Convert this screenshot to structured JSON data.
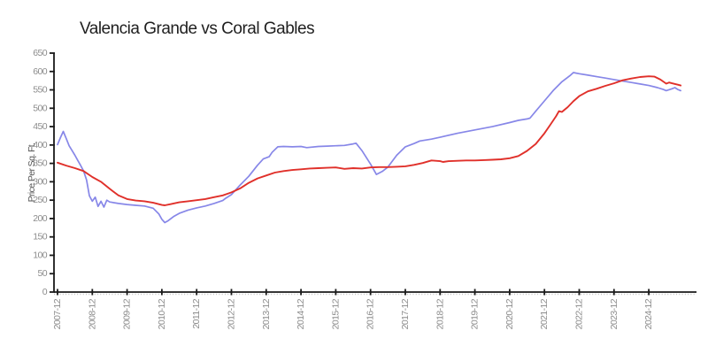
{
  "chart_data": {
    "type": "line",
    "title": "Valencia Grande vs Coral Gables",
    "xlabel": "",
    "ylabel": "Price Per Sq. Ft.",
    "ylim": [
      0,
      650
    ],
    "ytick_step": 50,
    "ytick_labels": [
      "0",
      "50",
      "100",
      "150",
      "200",
      "250",
      "300",
      "350",
      "400",
      "450",
      "500",
      "550",
      "600",
      "650"
    ],
    "xtick_labels": [
      "2007-12",
      "2008-12",
      "2009-12",
      "2010-12",
      "2011-12",
      "2012-12",
      "2013-12",
      "2014-12",
      "2015-12",
      "2016-12",
      "2017-12",
      "2018-12",
      "2019-12",
      "2020-12",
      "2021-12",
      "2022-12",
      "2023-12",
      "2024-12"
    ],
    "grid": false,
    "legend_position": "none",
    "colors": {
      "axis": "#1a1a1a",
      "tick_label": "#8c8c8c",
      "minor_tick": "#c4c4c4",
      "title": "#1f1f1f",
      "ylabel": "#555555"
    },
    "series": [
      {
        "name": "Valencia Grande",
        "color": "#8787e8",
        "stroke_width": 1.7,
        "points": [
          [
            "2007-12",
            401
          ],
          [
            "2008-01",
            420
          ],
          [
            "2008-02",
            437
          ],
          [
            "2008-03",
            418
          ],
          [
            "2008-04",
            398
          ],
          [
            "2008-05",
            385
          ],
          [
            "2008-06",
            372
          ],
          [
            "2008-07",
            358
          ],
          [
            "2008-08",
            344
          ],
          [
            "2008-09",
            329
          ],
          [
            "2008-10",
            305
          ],
          [
            "2008-11",
            262
          ],
          [
            "2008-12",
            247
          ],
          [
            "2009-01",
            258
          ],
          [
            "2009-02",
            233
          ],
          [
            "2009-03",
            247
          ],
          [
            "2009-04",
            231
          ],
          [
            "2009-05",
            250
          ],
          [
            "2009-06",
            245
          ],
          [
            "2009-09",
            241
          ],
          [
            "2009-12",
            238
          ],
          [
            "2010-03",
            236
          ],
          [
            "2010-06",
            234
          ],
          [
            "2010-09",
            228
          ],
          [
            "2010-11",
            212
          ],
          [
            "2010-12",
            198
          ],
          [
            "2011-01",
            189
          ],
          [
            "2011-02",
            193
          ],
          [
            "2011-04",
            205
          ],
          [
            "2011-06",
            214
          ],
          [
            "2011-09",
            223
          ],
          [
            "2011-12",
            229
          ],
          [
            "2012-03",
            234
          ],
          [
            "2012-06",
            241
          ],
          [
            "2012-09",
            249
          ],
          [
            "2012-10",
            255
          ],
          [
            "2012-12",
            265
          ],
          [
            "2013-03",
            291
          ],
          [
            "2013-06",
            315
          ],
          [
            "2013-09",
            345
          ],
          [
            "2013-11",
            362
          ],
          [
            "2014-01",
            368
          ],
          [
            "2014-02",
            380
          ],
          [
            "2014-04",
            395
          ],
          [
            "2014-06",
            396
          ],
          [
            "2014-09",
            395
          ],
          [
            "2014-12",
            396
          ],
          [
            "2015-02",
            393
          ],
          [
            "2015-06",
            396
          ],
          [
            "2015-09",
            397
          ],
          [
            "2015-12",
            398
          ],
          [
            "2016-03",
            399
          ],
          [
            "2016-06",
            403
          ],
          [
            "2016-07",
            405
          ],
          [
            "2016-09",
            385
          ],
          [
            "2016-12",
            348
          ],
          [
            "2017-02",
            320
          ],
          [
            "2017-04",
            328
          ],
          [
            "2017-06",
            340
          ],
          [
            "2017-09",
            372
          ],
          [
            "2017-12",
            395
          ],
          [
            "2018-03",
            404
          ],
          [
            "2018-05",
            411
          ],
          [
            "2018-09",
            416
          ],
          [
            "2018-12",
            421
          ],
          [
            "2019-06",
            432
          ],
          [
            "2019-12",
            441
          ],
          [
            "2020-06",
            450
          ],
          [
            "2020-12",
            461
          ],
          [
            "2021-03",
            467
          ],
          [
            "2021-06",
            471
          ],
          [
            "2021-07",
            473
          ],
          [
            "2021-09",
            492
          ],
          [
            "2021-12",
            520
          ],
          [
            "2022-03",
            548
          ],
          [
            "2022-06",
            572
          ],
          [
            "2022-09",
            590
          ],
          [
            "2022-10",
            597
          ],
          [
            "2022-12",
            594
          ],
          [
            "2023-03",
            590
          ],
          [
            "2023-06",
            586
          ],
          [
            "2023-09",
            582
          ],
          [
            "2023-12",
            578
          ],
          [
            "2024-03",
            574
          ],
          [
            "2024-06",
            570
          ],
          [
            "2024-09",
            566
          ],
          [
            "2024-12",
            562
          ],
          [
            "2025-03",
            556
          ],
          [
            "2025-05",
            551
          ],
          [
            "2025-06",
            548
          ],
          [
            "2025-08",
            553
          ],
          [
            "2025-09",
            556
          ],
          [
            "2025-10",
            551
          ],
          [
            "2025-11",
            548
          ]
        ]
      },
      {
        "name": "Coral Gables",
        "color": "#e0302a",
        "stroke_width": 1.9,
        "points": [
          [
            "2007-12",
            352
          ],
          [
            "2008-03",
            344
          ],
          [
            "2008-06",
            337
          ],
          [
            "2008-09",
            329
          ],
          [
            "2008-12",
            313
          ],
          [
            "2009-03",
            300
          ],
          [
            "2009-06",
            281
          ],
          [
            "2009-09",
            263
          ],
          [
            "2009-12",
            253
          ],
          [
            "2010-03",
            249
          ],
          [
            "2010-06",
            247
          ],
          [
            "2010-09",
            243
          ],
          [
            "2010-12",
            237
          ],
          [
            "2011-01",
            236
          ],
          [
            "2011-03",
            239
          ],
          [
            "2011-06",
            244
          ],
          [
            "2011-09",
            247
          ],
          [
            "2011-12",
            250
          ],
          [
            "2012-03",
            253
          ],
          [
            "2012-06",
            258
          ],
          [
            "2012-09",
            263
          ],
          [
            "2012-12",
            271
          ],
          [
            "2013-03",
            282
          ],
          [
            "2013-06",
            297
          ],
          [
            "2013-09",
            309
          ],
          [
            "2013-12",
            317
          ],
          [
            "2014-03",
            325
          ],
          [
            "2014-06",
            329
          ],
          [
            "2014-09",
            332
          ],
          [
            "2014-12",
            334
          ],
          [
            "2015-03",
            336
          ],
          [
            "2015-06",
            337
          ],
          [
            "2015-09",
            338
          ],
          [
            "2015-12",
            339
          ],
          [
            "2016-03",
            335
          ],
          [
            "2016-06",
            337
          ],
          [
            "2016-09",
            336
          ],
          [
            "2016-12",
            339
          ],
          [
            "2017-03",
            340
          ],
          [
            "2017-06",
            340
          ],
          [
            "2017-09",
            341
          ],
          [
            "2017-12",
            342
          ],
          [
            "2018-03",
            346
          ],
          [
            "2018-06",
            351
          ],
          [
            "2018-09",
            358
          ],
          [
            "2018-12",
            356
          ],
          [
            "2019-01",
            354
          ],
          [
            "2019-03",
            356
          ],
          [
            "2019-06",
            357
          ],
          [
            "2019-09",
            358
          ],
          [
            "2019-12",
            358
          ],
          [
            "2020-03",
            359
          ],
          [
            "2020-06",
            360
          ],
          [
            "2020-09",
            361
          ],
          [
            "2020-12",
            364
          ],
          [
            "2021-03",
            370
          ],
          [
            "2021-06",
            384
          ],
          [
            "2021-09",
            403
          ],
          [
            "2021-12",
            432
          ],
          [
            "2022-02",
            455
          ],
          [
            "2022-04",
            478
          ],
          [
            "2022-05",
            492
          ],
          [
            "2022-06",
            490
          ],
          [
            "2022-08",
            503
          ],
          [
            "2022-10",
            519
          ],
          [
            "2022-12",
            533
          ],
          [
            "2023-03",
            546
          ],
          [
            "2023-06",
            553
          ],
          [
            "2023-09",
            561
          ],
          [
            "2023-12",
            568
          ],
          [
            "2024-03",
            576
          ],
          [
            "2024-06",
            581
          ],
          [
            "2024-09",
            585
          ],
          [
            "2024-12",
            587
          ],
          [
            "2025-02",
            586
          ],
          [
            "2025-04",
            578
          ],
          [
            "2025-06",
            567
          ],
          [
            "2025-07",
            570
          ],
          [
            "2025-08",
            568
          ],
          [
            "2025-10",
            564
          ],
          [
            "2025-11",
            562
          ]
        ]
      }
    ]
  }
}
